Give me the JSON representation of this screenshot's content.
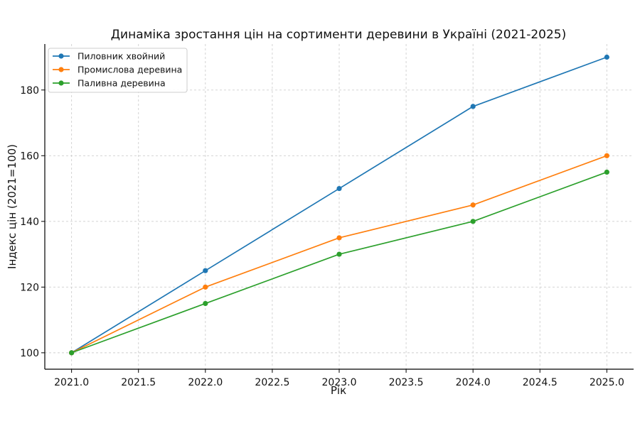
{
  "chart_data": {
    "type": "line",
    "title": "Динаміка зростання цін на сортименти деревини в Україні (2021-2025)",
    "xlabel": "Рік",
    "ylabel": "Індекс цін (2021=100)",
    "x": [
      2021,
      2022,
      2023,
      2024,
      2025
    ],
    "xlim": [
      2020.8,
      2025.2
    ],
    "ylim": [
      95,
      194
    ],
    "xticks": [
      2021.0,
      2021.5,
      2022.0,
      2022.5,
      2023.0,
      2023.5,
      2024.0,
      2024.5,
      2025.0
    ],
    "xtick_labels": [
      "2021.0",
      "2021.5",
      "2022.0",
      "2022.5",
      "2023.0",
      "2023.5",
      "2024.0",
      "2024.5",
      "2025.0"
    ],
    "yticks": [
      100,
      120,
      140,
      160,
      180
    ],
    "ytick_labels": [
      "100",
      "120",
      "140",
      "160",
      "180"
    ],
    "grid": true,
    "legend_position": "top-left",
    "series": [
      {
        "name": "Пиловник хвойний",
        "color": "#1f77b4",
        "values": [
          100,
          125,
          150,
          175,
          190
        ]
      },
      {
        "name": "Промислова деревина",
        "color": "#ff7f0e",
        "values": [
          100,
          120,
          135,
          145,
          160
        ]
      },
      {
        "name": "Паливна деревина",
        "color": "#2ca02c",
        "values": [
          100,
          115,
          130,
          140,
          155
        ]
      }
    ]
  }
}
